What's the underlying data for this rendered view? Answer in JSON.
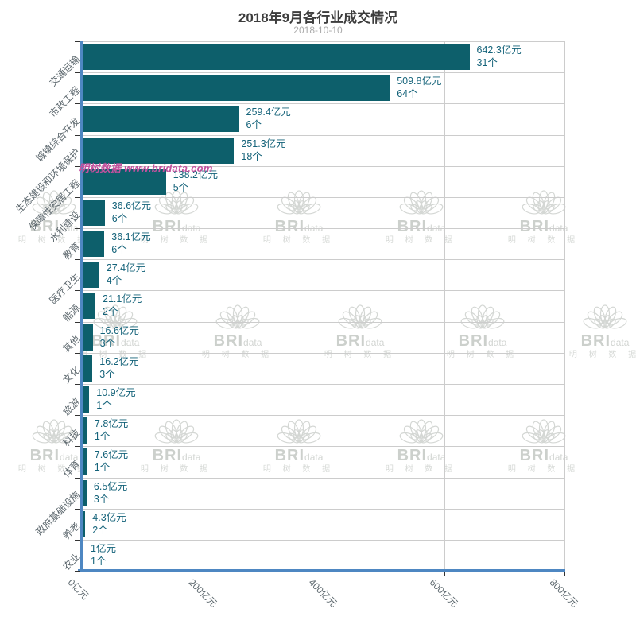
{
  "title": "2018年9月各行业成交情况",
  "subtitle": "2018-10-10",
  "watermark": {
    "pink_text": "明树数据 www.bridata.com",
    "pink_color": "#c3519e",
    "logo_brand": "BRI",
    "logo_brand_suffix": "data",
    "logo_caption": "明 树 数 据",
    "logo_color": "#d4d7d4"
  },
  "chart_data": {
    "type": "bar",
    "orientation": "horizontal",
    "title": "2018年9月各行业成交情况",
    "subtitle": "2018-10-10",
    "categories": [
      "交通运输",
      "市政工程",
      "城镇综合开发",
      "生态建设和环境保护",
      "保障性安居工程",
      "水利建设",
      "教育",
      "医疗卫生",
      "能源",
      "其他",
      "文化",
      "旅游",
      "科技",
      "体育",
      "政府基础设施",
      "养老",
      "农业"
    ],
    "values": [
      642.3,
      509.8,
      259.4,
      251.3,
      138.2,
      36.6,
      36.1,
      27.4,
      21.1,
      16.6,
      16.2,
      10.9,
      7.8,
      7.6,
      6.5,
      4.3,
      1
    ],
    "counts": [
      31,
      64,
      6,
      18,
      5,
      6,
      6,
      4,
      2,
      3,
      3,
      1,
      1,
      1,
      3,
      2,
      1
    ],
    "value_suffix": "亿元",
    "count_suffix": "个",
    "xlim": [
      0,
      800
    ],
    "x_ticks": [
      0,
      200,
      400,
      600,
      800
    ],
    "x_tick_labels": [
      "0亿元",
      "200亿元",
      "400亿元",
      "600亿元",
      "800亿元"
    ],
    "grid": true,
    "legend_position": "none",
    "bar_color": "#0d5f6b",
    "value_label_color": "#15637a",
    "axis_line_color": "#4e87c2",
    "grid_color": "#cccccc",
    "tick_color": "#333333",
    "axis_label_color": "#5d686e"
  }
}
